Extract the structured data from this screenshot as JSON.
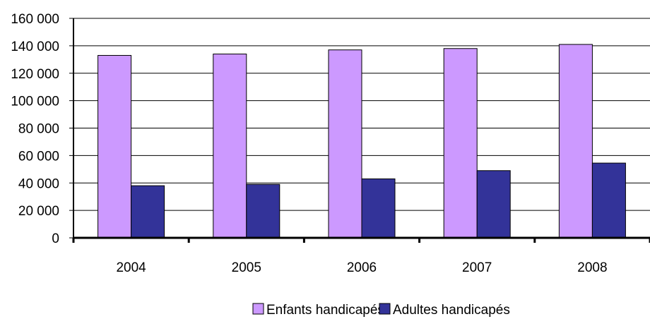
{
  "chart_data": {
    "type": "bar",
    "categories": [
      "2004",
      "2005",
      "2006",
      "2007",
      "2008"
    ],
    "series": [
      {
        "name": "Enfants handicapés",
        "values": [
          133000,
          134000,
          137000,
          138000,
          141000
        ],
        "color": "#cc99ff"
      },
      {
        "name": "Adultes handicapés",
        "values": [
          38000,
          39000,
          43000,
          49000,
          54500
        ],
        "color": "#333399"
      }
    ],
    "yticks": [
      "0",
      "20 000",
      "40 000",
      "60 000",
      "80 000",
      "100 000",
      "120 000",
      "140 000",
      "160 000"
    ],
    "ylim": [
      0,
      160000
    ],
    "grid": true,
    "legend_position": "bottom"
  }
}
